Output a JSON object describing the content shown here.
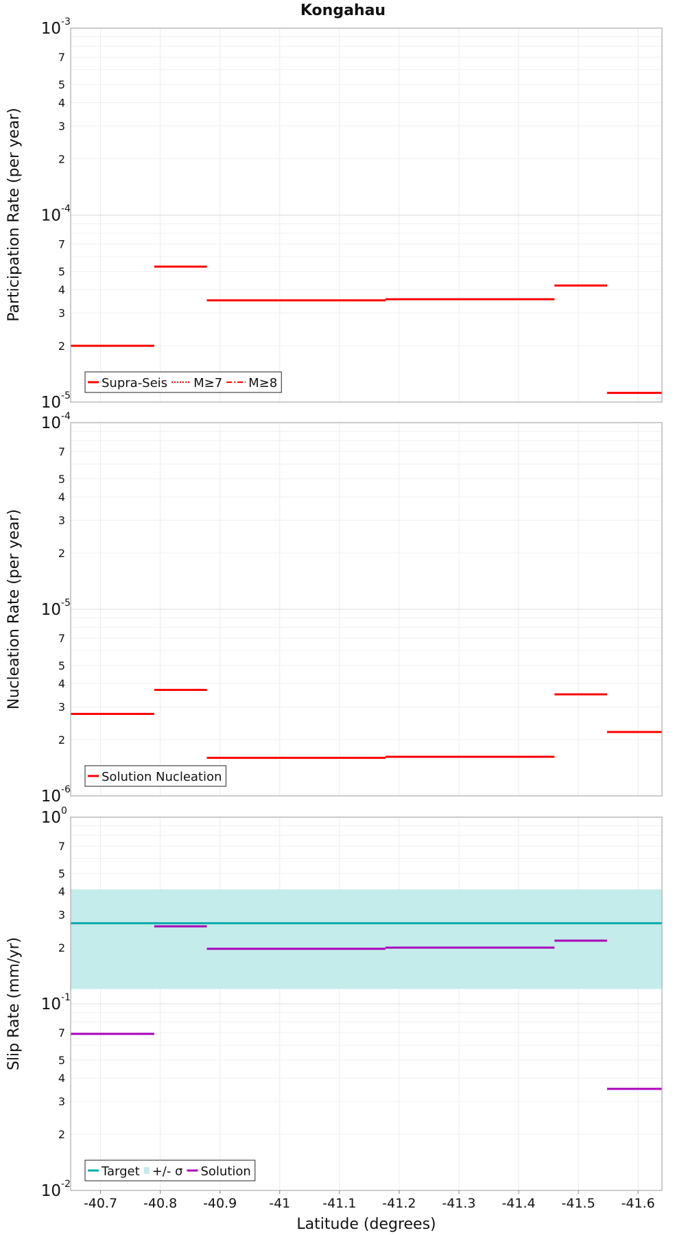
{
  "chart_data": [
    {
      "type": "line",
      "panel": "participation",
      "title": "Kongahau",
      "ylabel": "Participation Rate (per year)",
      "xlabel": "",
      "yscale": "log",
      "ylim": [
        1e-05,
        0.001
      ],
      "xlim": [
        -40.65,
        -41.64
      ],
      "grid": true,
      "legend_position": "bottom-left",
      "series": [
        {
          "name": "Supra-Seis",
          "color": "#ff0000",
          "style": "solid",
          "segments": [
            {
              "x": [
                -40.65,
                -40.79
              ],
              "y": 2e-05
            },
            {
              "x": [
                -40.79,
                -40.878
              ],
              "y": 5.3e-05
            },
            {
              "x": [
                -40.878,
                -41.177
              ],
              "y": 3.5e-05
            },
            {
              "x": [
                -41.177,
                -41.46
              ],
              "y": 3.55e-05
            },
            {
              "x": [
                -41.46,
                -41.548
              ],
              "y": 4.2e-05
            },
            {
              "x": [
                -41.548,
                -41.64
              ],
              "y": 1.12e-05
            }
          ]
        },
        {
          "name": "M≥7",
          "color": "#ff0000",
          "style": "dotted",
          "segments": [
            {
              "x": [
                -40.65,
                -40.79
              ],
              "y": 2e-05
            },
            {
              "x": [
                -40.79,
                -40.878
              ],
              "y": 5.3e-05
            },
            {
              "x": [
                -40.878,
                -41.177
              ],
              "y": 3.5e-05
            },
            {
              "x": [
                -41.177,
                -41.46
              ],
              "y": 3.55e-05
            },
            {
              "x": [
                -41.46,
                -41.548
              ],
              "y": 4.2e-05
            },
            {
              "x": [
                -41.548,
                -41.64
              ],
              "y": 1.12e-05
            }
          ]
        },
        {
          "name": "M≥8",
          "color": "#ff0000",
          "style": "dashdot",
          "segments": []
        }
      ]
    },
    {
      "type": "line",
      "panel": "nucleation",
      "ylabel": "Nucleation Rate (per year)",
      "xlabel": "",
      "yscale": "log",
      "ylim": [
        1e-06,
        0.0001
      ],
      "xlim": [
        -40.65,
        -41.64
      ],
      "grid": true,
      "legend_position": "bottom-left",
      "series": [
        {
          "name": "Solution Nucleation",
          "color": "#ff0000",
          "style": "solid",
          "segments": [
            {
              "x": [
                -40.65,
                -40.79
              ],
              "y": 2.75e-06
            },
            {
              "x": [
                -40.79,
                -40.878
              ],
              "y": 3.7e-06
            },
            {
              "x": [
                -40.878,
                -41.177
              ],
              "y": 1.6e-06
            },
            {
              "x": [
                -41.177,
                -41.46
              ],
              "y": 1.62e-06
            },
            {
              "x": [
                -41.46,
                -41.548
              ],
              "y": 3.5e-06
            },
            {
              "x": [
                -41.548,
                -41.64
              ],
              "y": 2.2e-06
            }
          ]
        }
      ]
    },
    {
      "type": "line",
      "panel": "slip",
      "ylabel": "Slip Rate (mm/yr)",
      "xlabel": "Latitude (degrees)",
      "yscale": "log",
      "ylim": [
        0.01,
        1
      ],
      "xlim": [
        -40.65,
        -41.64
      ],
      "grid": true,
      "legend_position": "bottom-left",
      "x_ticks": [
        "-40.7",
        "-40.8",
        "-40.9",
        "-41",
        "-41.1",
        "-41.2",
        "-41.3",
        "-41.4",
        "-41.5",
        "-41.6"
      ],
      "series": [
        {
          "name": "Target",
          "color": "#00aaaa",
          "style": "solid",
          "segments": [
            {
              "x": [
                -40.65,
                -41.64
              ],
              "y": 0.27
            }
          ]
        },
        {
          "name": "+/- σ",
          "color": "#c3ecea",
          "style": "band",
          "band": {
            "x": [
              -40.65,
              -41.64
            ],
            "y_low": 0.12,
            "y_high": 0.41
          }
        },
        {
          "name": "Solution",
          "color": "#aa00bb",
          "style": "solid",
          "segments": [
            {
              "x": [
                -40.65,
                -40.79
              ],
              "y": 0.069
            },
            {
              "x": [
                -40.79,
                -40.878
              ],
              "y": 0.26
            },
            {
              "x": [
                -40.878,
                -41.177
              ],
              "y": 0.197
            },
            {
              "x": [
                -41.177,
                -41.46
              ],
              "y": 0.2
            },
            {
              "x": [
                -41.46,
                -41.548
              ],
              "y": 0.218
            },
            {
              "x": [
                -41.548,
                -41.64
              ],
              "y": 0.035
            }
          ]
        }
      ]
    }
  ]
}
